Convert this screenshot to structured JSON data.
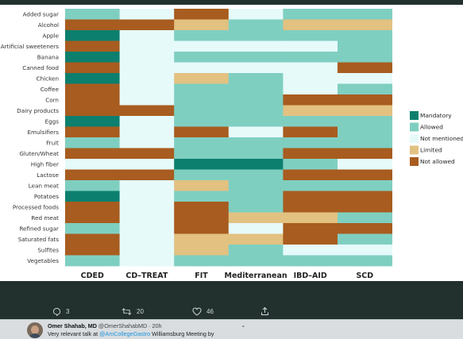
{
  "chart_data": {
    "type": "heatmap",
    "columns": [
      "CDED",
      "CD–TREAT",
      "FIT",
      "Mediterranean",
      "IBD–AID",
      "SCD"
    ],
    "rows": [
      "Added sugar",
      "Alcohol",
      "Apple",
      "Artificial sweeteners",
      "Banana",
      "Canned food",
      "Chicken",
      "Coffee",
      "Corn",
      "Dairy products",
      "Eggs",
      "Emulsifiers",
      "Fruit",
      "Gluten/Wheat",
      "High fiber",
      "Lactose",
      "Lean meat",
      "Potatoes",
      "Processed foods",
      "Red meat",
      "Refined sugar",
      "Saturated fats",
      "Sulfites",
      "Vegetables"
    ],
    "legend": [
      {
        "key": "M",
        "label": "Mandatory",
        "color": "#0d7f6e"
      },
      {
        "key": "A",
        "label": "Allowed",
        "color": "#7fcfc1"
      },
      {
        "key": "N",
        "label": "Not mentioned",
        "color": "#e6fafa"
      },
      {
        "key": "L",
        "label": "Limited",
        "color": "#e2c181"
      },
      {
        "key": "X",
        "label": "Not allowed",
        "color": "#a85c1f"
      }
    ],
    "values": [
      [
        "A",
        "N",
        "X",
        "N",
        "A",
        "A"
      ],
      [
        "X",
        "X",
        "L",
        "A",
        "L",
        "L"
      ],
      [
        "M",
        "N",
        "A",
        "A",
        "A",
        "A"
      ],
      [
        "X",
        "N",
        "N",
        "N",
        "N",
        "A"
      ],
      [
        "M",
        "N",
        "A",
        "A",
        "A",
        "A"
      ],
      [
        "X",
        "N",
        "N",
        "N",
        "N",
        "X"
      ],
      [
        "M",
        "N",
        "L",
        "A",
        "N",
        "N"
      ],
      [
        "X",
        "N",
        "A",
        "A",
        "N",
        "A"
      ],
      [
        "X",
        "N",
        "A",
        "A",
        "X",
        "X"
      ],
      [
        "X",
        "X",
        "A",
        "A",
        "L",
        "L"
      ],
      [
        "M",
        "N",
        "A",
        "A",
        "A",
        "A"
      ],
      [
        "X",
        "N",
        "X",
        "N",
        "X",
        "A"
      ],
      [
        "A",
        "N",
        "A",
        "A",
        "A",
        "A"
      ],
      [
        "X",
        "X",
        "A",
        "A",
        "X",
        "X"
      ],
      [
        "N",
        "N",
        "M",
        "M",
        "A",
        "N"
      ],
      [
        "X",
        "X",
        "A",
        "A",
        "X",
        "X"
      ],
      [
        "A",
        "N",
        "L",
        "A",
        "A",
        "A"
      ],
      [
        "M",
        "N",
        "A",
        "A",
        "X",
        "X"
      ],
      [
        "X",
        "N",
        "X",
        "A",
        "X",
        "X"
      ],
      [
        "X",
        "N",
        "X",
        "L",
        "L",
        "A"
      ],
      [
        "A",
        "N",
        "X",
        "N",
        "X",
        "X"
      ],
      [
        "X",
        "N",
        "L",
        "L",
        "X",
        "A"
      ],
      [
        "X",
        "N",
        "L",
        "A",
        "N",
        "N"
      ],
      [
        "A",
        "N",
        "A",
        "A",
        "A",
        "A"
      ]
    ]
  },
  "actions": {
    "replies": "3",
    "retweets": "20",
    "likes": "46"
  },
  "reply": {
    "name": "Omer Shahab, MD",
    "handle": "@OmerShahabMD",
    "time": "· 20h",
    "text_before": "Very relevant talk at ",
    "mention": "@AmCollegeGastro",
    "text_after": " Williamsburg Meeting by"
  }
}
